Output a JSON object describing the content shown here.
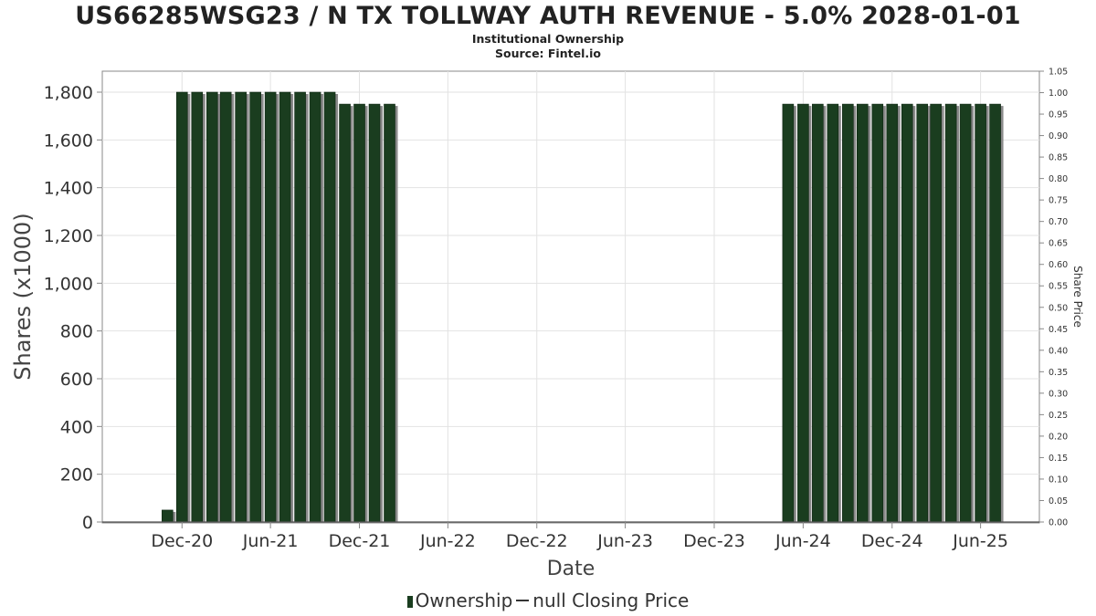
{
  "chart_data": {
    "type": "bar",
    "title": "US66285WSG23 / N TX TOLLWAY AUTH REVENUE - 5.0% 2028-01-01",
    "subtitle": "Institutional Ownership",
    "source": "Source: Fintel.io",
    "xlabel": "Date",
    "ylabel": "Shares (x1000)",
    "y2label": "Share Price",
    "ylim": [
      0,
      1900
    ],
    "y2lim": [
      0,
      1.05
    ],
    "yticks": [
      "0",
      "200",
      "400",
      "600",
      "800",
      "1,000",
      "1,200",
      "1,400",
      "1,600",
      "1,800"
    ],
    "yticks_values": [
      0,
      200,
      400,
      600,
      800,
      1000,
      1200,
      1400,
      1600,
      1800
    ],
    "y2ticks": [
      "0.00",
      "0.05",
      "0.10",
      "0.15",
      "0.20",
      "0.25",
      "0.30",
      "0.35",
      "0.40",
      "0.45",
      "0.50",
      "0.55",
      "0.60",
      "0.65",
      "0.70",
      "0.75",
      "0.80",
      "0.85",
      "0.90",
      "0.95",
      "1.00",
      "1.05"
    ],
    "xticks": [
      "Dec-20",
      "Jun-21",
      "Dec-21",
      "Jun-22",
      "Dec-22",
      "Jun-23",
      "Dec-23",
      "Jun-24",
      "Dec-24",
      "Jun-25"
    ],
    "xticks_dates": [
      "2020-12-01",
      "2021-06-01",
      "2021-12-01",
      "2022-06-01",
      "2022-12-01",
      "2023-06-01",
      "2023-12-01",
      "2024-06-01",
      "2024-12-01",
      "2025-06-01"
    ],
    "x_range": [
      "2020-06-20",
      "2025-09-30"
    ],
    "grid": true,
    "legend_position": "bottom",
    "series": [
      {
        "name": "Ownership",
        "color": "#1a3d1f",
        "x": [
          "2020-11-01",
          "2020-12-01",
          "2021-01-01",
          "2021-02-01",
          "2021-03-01",
          "2021-04-01",
          "2021-05-01",
          "2021-06-01",
          "2021-07-01",
          "2021-08-01",
          "2021-09-01",
          "2021-10-01",
          "2021-11-01",
          "2021-12-01",
          "2022-01-01",
          "2022-02-01",
          "2024-05-01",
          "2024-06-01",
          "2024-07-01",
          "2024-08-01",
          "2024-09-01",
          "2024-10-01",
          "2024-11-01",
          "2024-12-01",
          "2025-01-01",
          "2025-02-01",
          "2025-03-01",
          "2025-04-01",
          "2025-05-01",
          "2025-06-01",
          "2025-07-01"
        ],
        "values": [
          50,
          1800,
          1800,
          1800,
          1800,
          1800,
          1800,
          1800,
          1800,
          1800,
          1800,
          1800,
          1750,
          1750,
          1750,
          1750,
          1750,
          1750,
          1750,
          1750,
          1750,
          1750,
          1750,
          1750,
          1750,
          1750,
          1750,
          1750,
          1750,
          1750,
          1750
        ]
      }
    ],
    "legend": {
      "bar_label": "Ownership",
      "line_label": "null Closing Price"
    }
  }
}
